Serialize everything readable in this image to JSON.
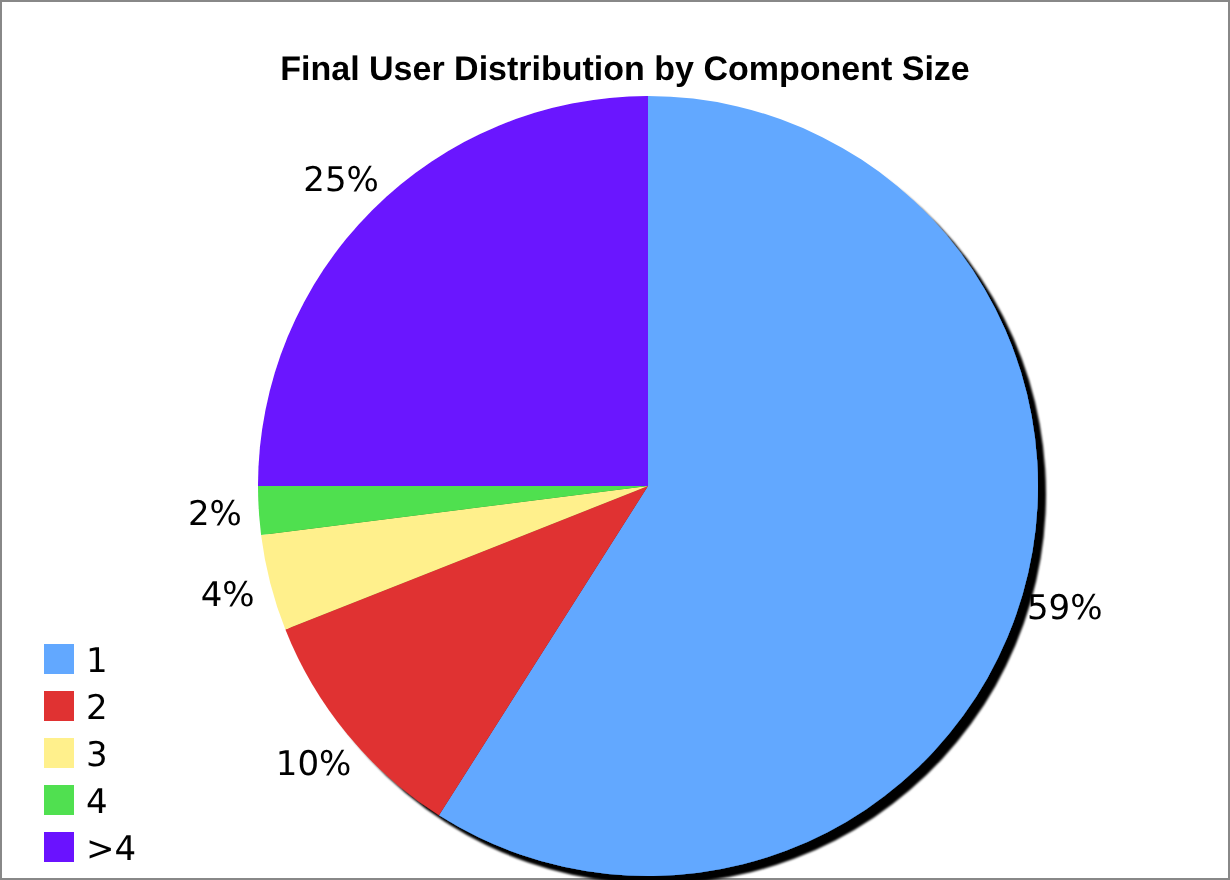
{
  "chart_data": {
    "type": "pie",
    "title": "Final User Distribution by Component Size",
    "categories": [
      "1",
      "2",
      "3",
      "4",
      ">4"
    ],
    "values": [
      59,
      10,
      4,
      2,
      25
    ],
    "colors": [
      "#62a8ff",
      "#e03232",
      "#fff08c",
      "#50e050",
      "#6a12ff"
    ],
    "value_labels": [
      "59%",
      "10%",
      "4%",
      "2%",
      "25%"
    ],
    "legend": "bottom left"
  }
}
